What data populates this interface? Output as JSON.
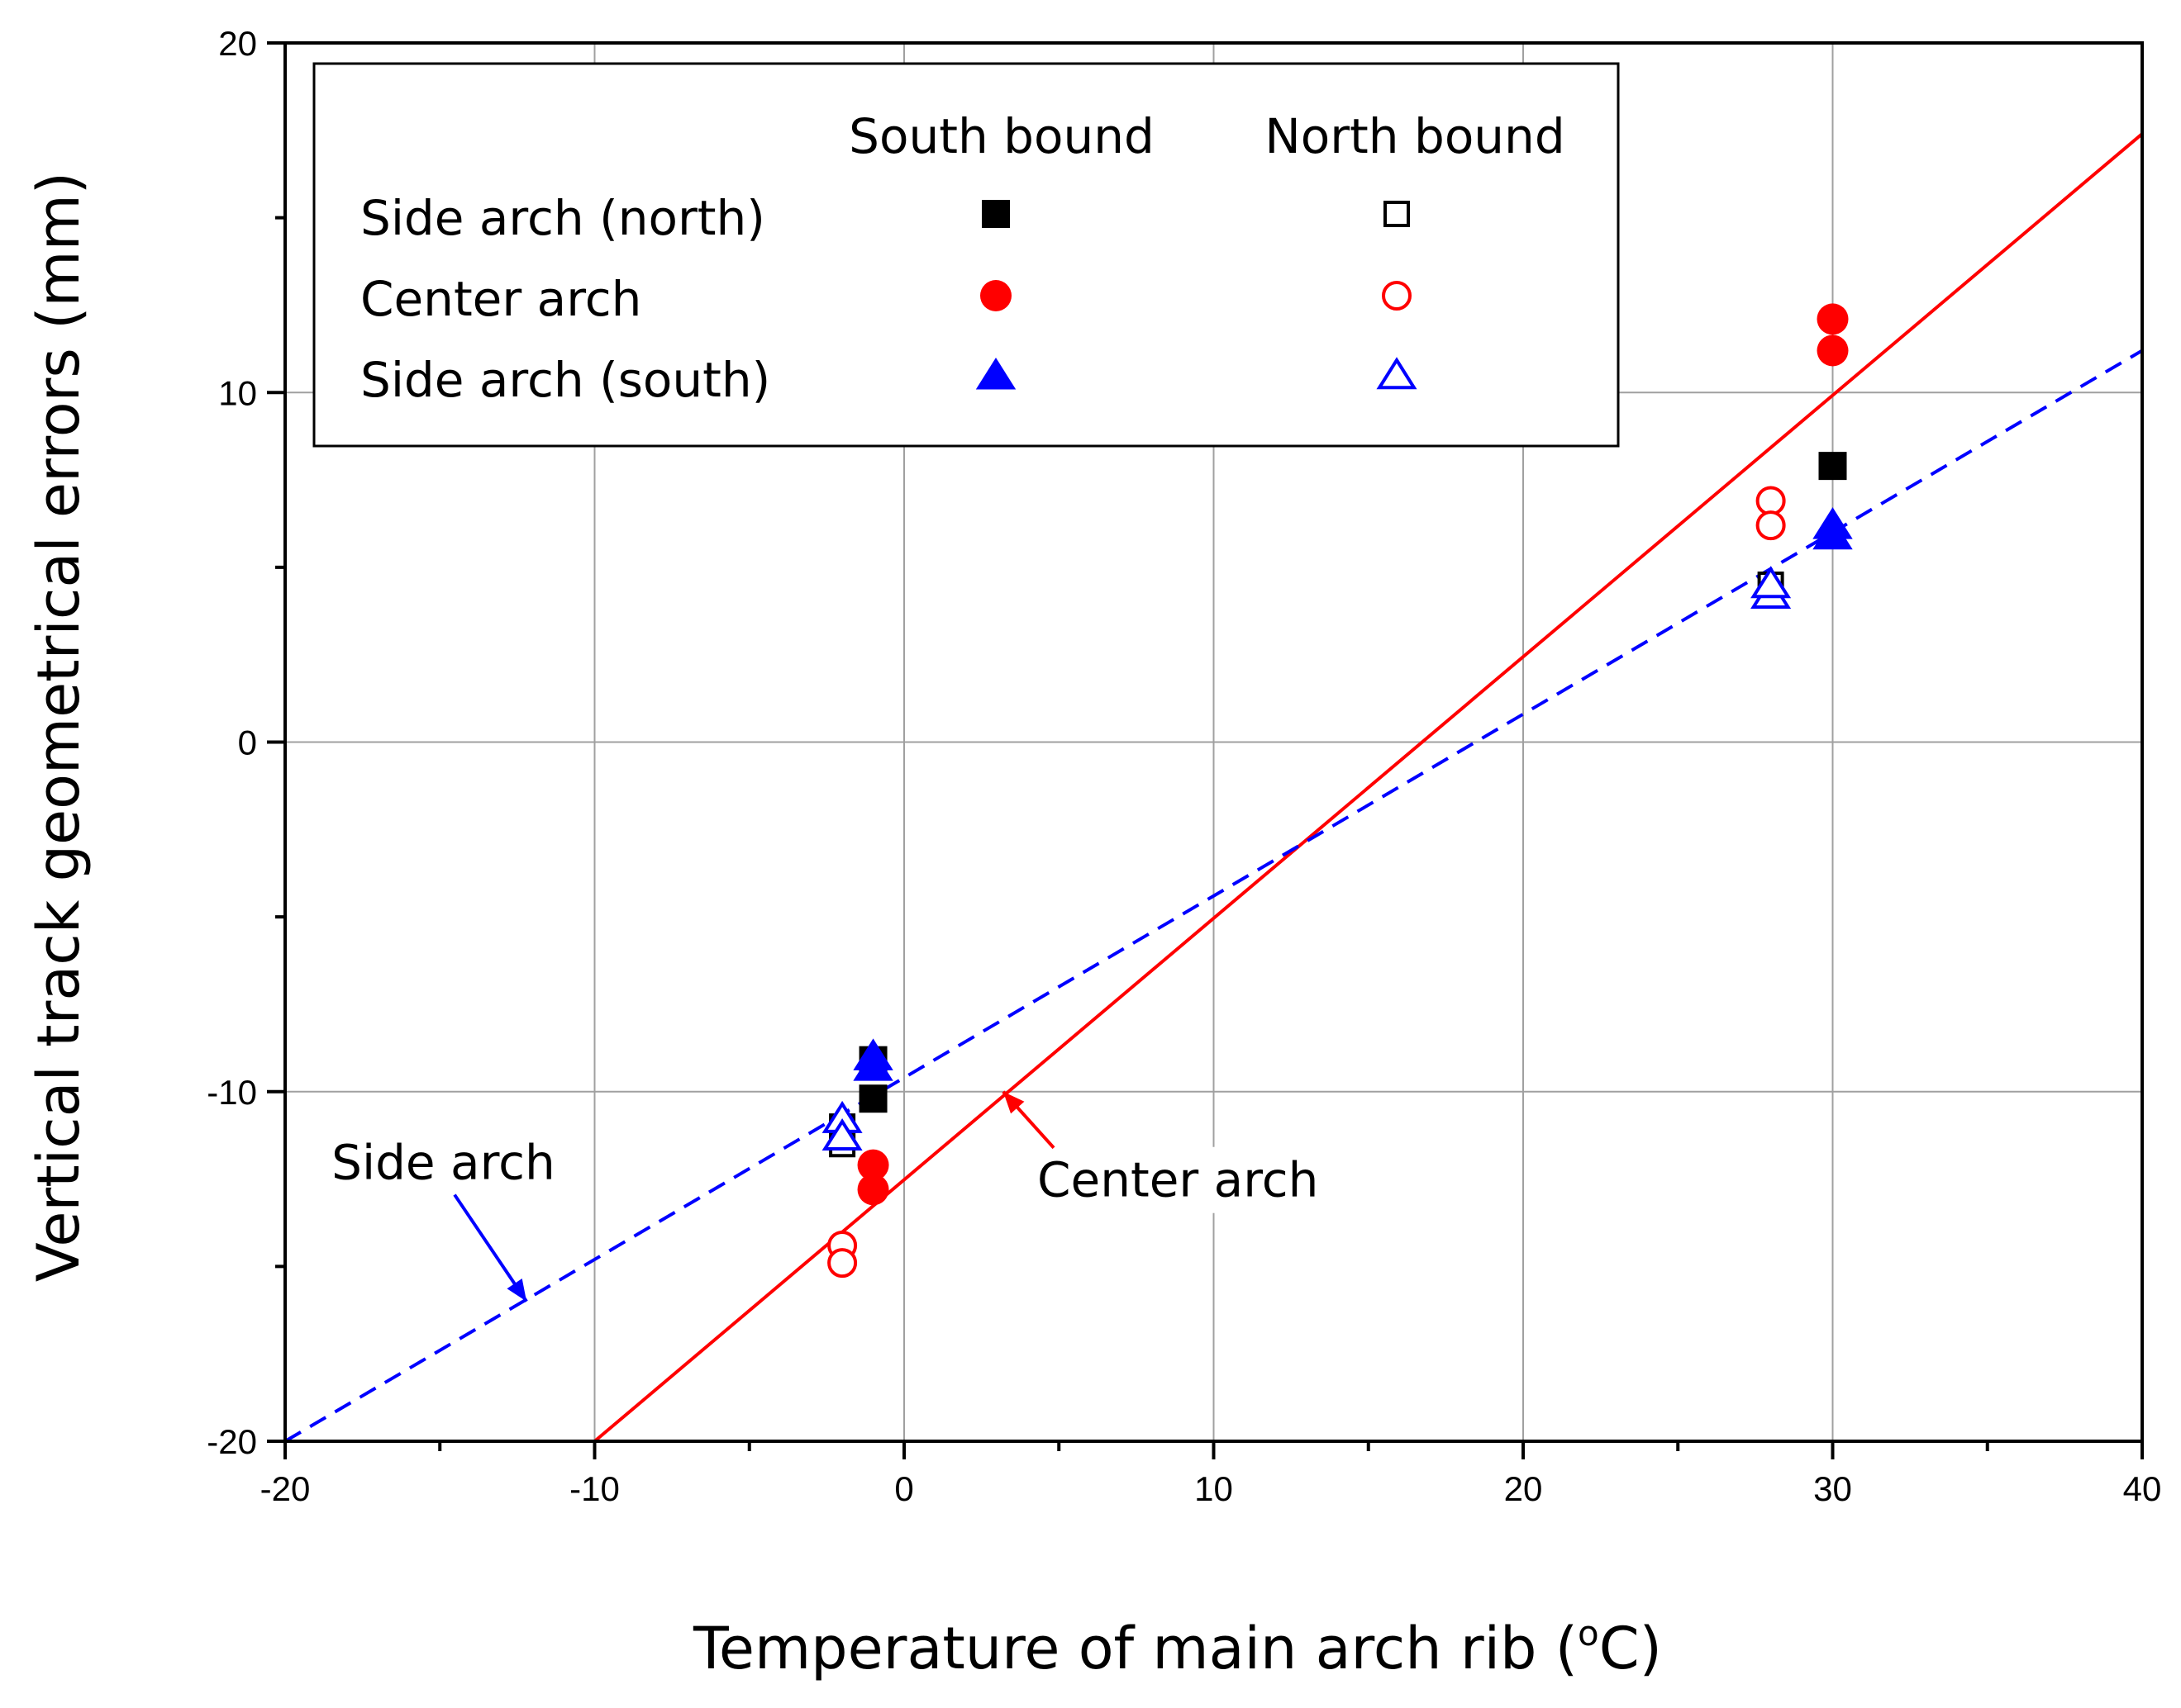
{
  "chart_data": {
    "type": "scatter",
    "title": "",
    "xlabel": "Temperature of main arch rib (°C)",
    "xlabel_prefix": "Temperature of main arch rib (",
    "xlabel_superscript": "o",
    "xlabel_suffix": "C)",
    "ylabel": "Vertical track geometrical errors (mm)",
    "xlim": [
      -20,
      40
    ],
    "ylim": [
      -20,
      20
    ],
    "xticks": [
      -20,
      -10,
      0,
      10,
      20,
      30,
      40
    ],
    "yticks": [
      -20,
      -10,
      0,
      10,
      20
    ],
    "grid": true,
    "colors": {
      "north_side": "#000000",
      "center": "#ff0000",
      "south_side": "#0000ff"
    },
    "legend": {
      "placement": "top-left",
      "col_headers": [
        "South bound",
        "North bound"
      ],
      "rows": [
        "Side arch (north)",
        "Center arch",
        "Side arch (south)"
      ]
    },
    "series": [
      {
        "name": "Side arch (north) - South bound",
        "marker": "square-filled",
        "color": "#000000",
        "points": [
          [
            -1,
            -9.1
          ],
          [
            -1,
            -10.2
          ],
          [
            30,
            7.9
          ]
        ]
      },
      {
        "name": "Side arch (north) - North bound",
        "marker": "square-open",
        "color": "#000000",
        "points": [
          [
            -2,
            -11.0
          ],
          [
            -2,
            -11.5
          ],
          [
            28,
            4.5
          ]
        ]
      },
      {
        "name": "Center arch - South bound",
        "marker": "circle-filled",
        "color": "#ff0000",
        "points": [
          [
            -1,
            -12.1
          ],
          [
            -1,
            -12.8
          ],
          [
            30,
            12.1
          ],
          [
            30,
            11.2
          ]
        ]
      },
      {
        "name": "Center arch - North bound",
        "marker": "circle-open",
        "color": "#ff0000",
        "points": [
          [
            -2,
            -14.4
          ],
          [
            -2,
            -14.9
          ],
          [
            28,
            6.9
          ],
          [
            28,
            6.2
          ]
        ]
      },
      {
        "name": "Side arch (south) - South bound",
        "marker": "triangle-filled",
        "color": "#0000ff",
        "points": [
          [
            -1,
            -9.0
          ],
          [
            -1,
            -9.3
          ],
          [
            30,
            6.2
          ],
          [
            30,
            5.9
          ]
        ]
      },
      {
        "name": "Side arch (south) - North bound",
        "marker": "triangle-open",
        "color": "#0000ff",
        "points": [
          [
            -2,
            -10.8
          ],
          [
            -2,
            -11.3
          ],
          [
            28,
            4.2
          ],
          [
            28,
            4.5
          ]
        ]
      }
    ],
    "fit_lines": [
      {
        "name": "Center arch",
        "style": "solid",
        "color": "#ff0000",
        "points": [
          [
            -10,
            -20
          ],
          [
            40,
            17.4
          ]
        ]
      },
      {
        "name": "Side arch",
        "style": "dashed",
        "color": "#0000ff",
        "points": [
          [
            -20,
            -20
          ],
          [
            40,
            11.2
          ]
        ]
      }
    ],
    "annotations": [
      {
        "text": "Side arch",
        "target_line": "Side arch",
        "text_at": [
          -18.5,
          -12.5
        ],
        "arrow_tip": [
          -12.2,
          -16.0
        ]
      },
      {
        "text": "Center arch",
        "target_line": "Center arch",
        "text_at": [
          4.3,
          -13.0
        ],
        "arrow_tip": [
          3.2,
          -10.0
        ]
      }
    ]
  }
}
